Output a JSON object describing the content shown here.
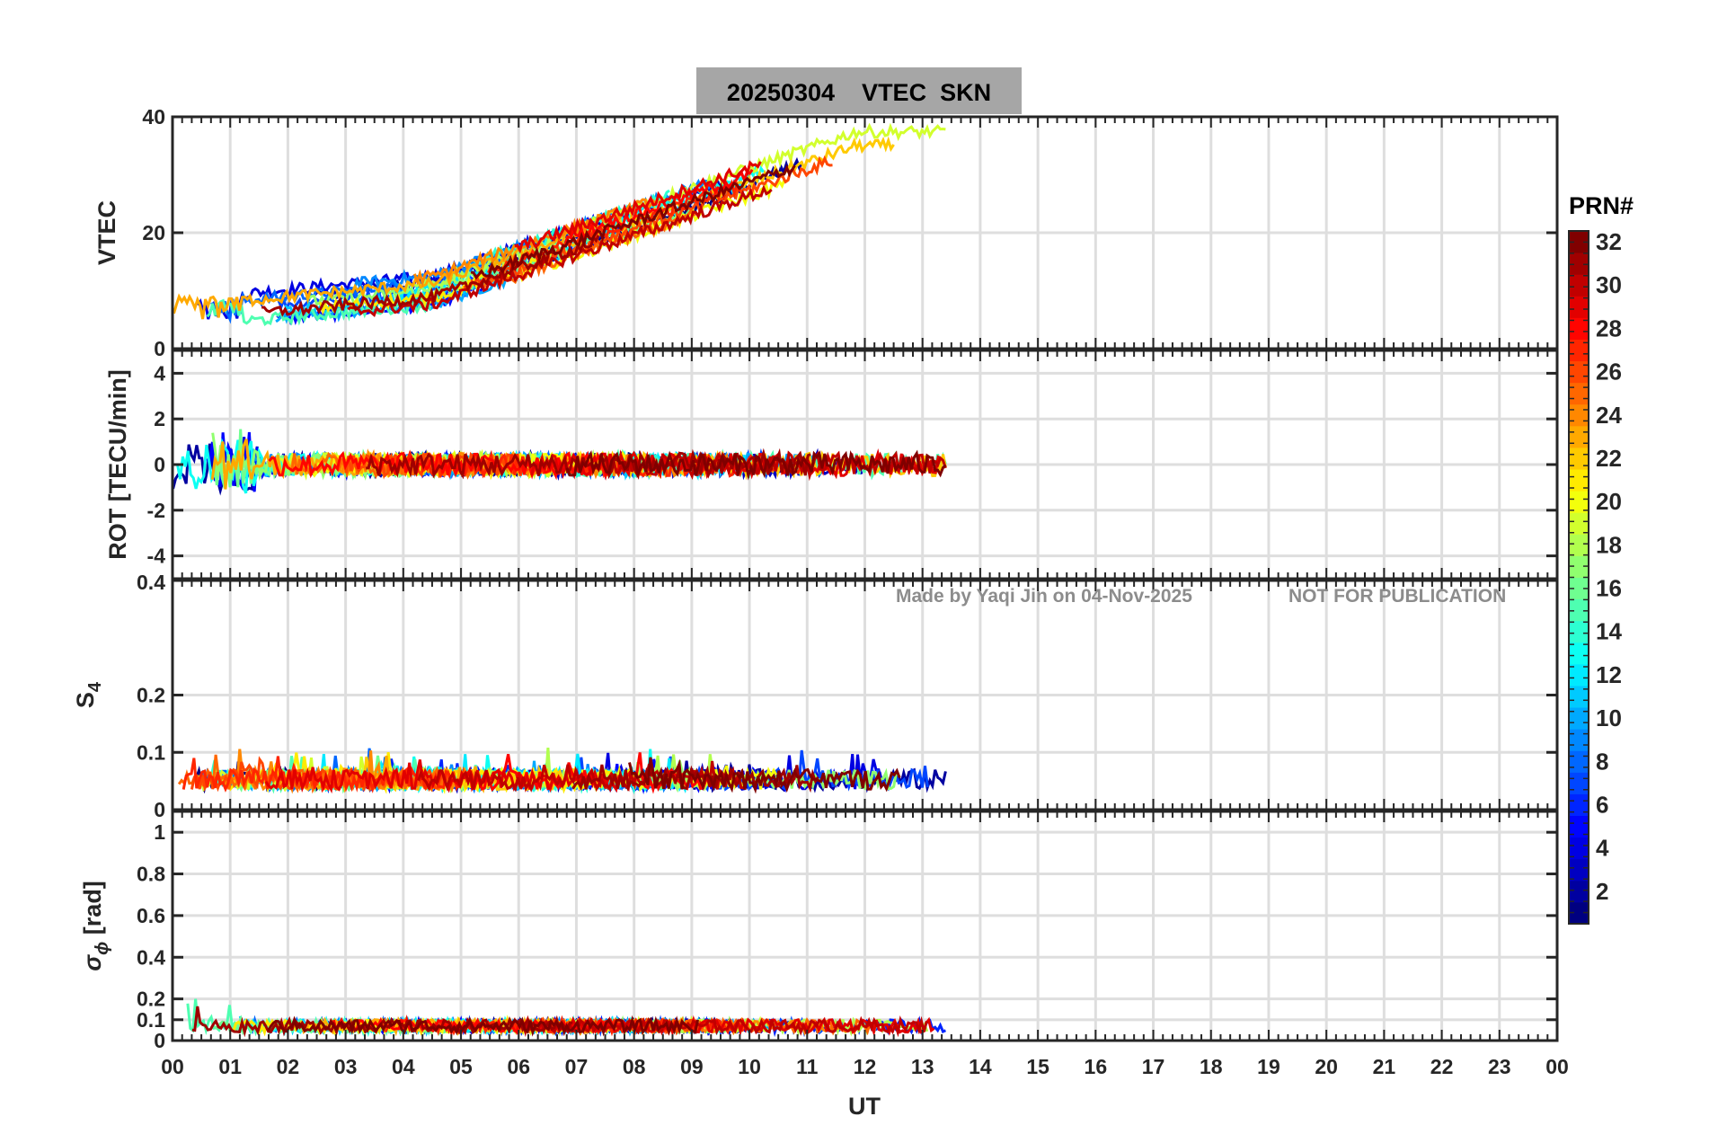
{
  "figure": {
    "title": "20250304    VTEC  SKN",
    "watermark_left": "Made by Yaqi Jin on 04-Nov-2025",
    "watermark_right": "NOT FOR PUBLICATION",
    "colorbar_label": "PRN#",
    "colorbar_ticks": [
      "2",
      "4",
      "6",
      "8",
      "10",
      "12",
      "14",
      "16",
      "18",
      "20",
      "22",
      "24",
      "26",
      "28",
      "30",
      "32"
    ],
    "colormap": "jet"
  },
  "chart_data": [
    {
      "type": "line",
      "name": "vtec",
      "ylabel": "VTEC",
      "ylim": [
        0,
        40
      ],
      "yticks": [
        0,
        20,
        40
      ],
      "xlim": [
        0,
        24
      ],
      "grid": true,
      "data_extent_hours": [
        0,
        13.4
      ],
      "series_note": "one line per PRN 1-32, coloured by colorbar"
    },
    {
      "type": "line",
      "name": "rot",
      "ylabel": "ROT [TECU/min]",
      "ylim": [
        -5,
        5
      ],
      "yticks": [
        -4,
        -2,
        0,
        2,
        4
      ],
      "xlim": [
        0,
        24
      ],
      "grid": true
    },
    {
      "type": "line",
      "name": "s4",
      "ylabel": "S",
      "ylabel_sub": "4",
      "ylim": [
        0,
        0.4
      ],
      "yticks": [
        0,
        0.1,
        0.2
      ],
      "ytick_labels": [
        "0",
        "0.1",
        "0.2"
      ],
      "top_label": "0.4",
      "xlim": [
        0,
        24
      ],
      "grid": true
    },
    {
      "type": "line",
      "name": "sigphi",
      "ylabel": "[rad]",
      "ylabel_sym": "σ",
      "ylabel_sub": "ϕ",
      "ylim": [
        0,
        1.1
      ],
      "yticks": [
        0,
        0.1,
        0.2,
        0.4,
        0.6,
        0.8,
        1
      ],
      "ytick_labels": [
        "0",
        "0.1",
        "0.2",
        "0.4",
        "0.6",
        "0.8",
        "1"
      ],
      "xlim": [
        0,
        24
      ],
      "grid": true
    }
  ],
  "xaxis": {
    "label": "UT",
    "tick_labels": [
      "00",
      "01",
      "02",
      "03",
      "04",
      "05",
      "06",
      "07",
      "08",
      "09",
      "10",
      "11",
      "12",
      "13",
      "14",
      "15",
      "16",
      "17",
      "18",
      "19",
      "20",
      "21",
      "22",
      "23",
      "00"
    ]
  }
}
